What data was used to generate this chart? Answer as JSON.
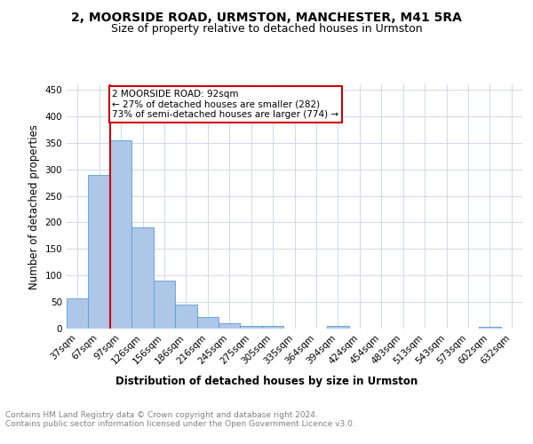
{
  "title1": "2, MOORSIDE ROAD, URMSTON, MANCHESTER, M41 5RA",
  "title2": "Size of property relative to detached houses in Urmston",
  "xlabel": "Distribution of detached houses by size in Urmston",
  "ylabel": "Number of detached properties",
  "footer": "Contains HM Land Registry data © Crown copyright and database right 2024.\nContains public sector information licensed under the Open Government Licence v3.0.",
  "categories": [
    "37sqm",
    "67sqm",
    "97sqm",
    "126sqm",
    "156sqm",
    "186sqm",
    "216sqm",
    "245sqm",
    "275sqm",
    "305sqm",
    "335sqm",
    "364sqm",
    "394sqm",
    "424sqm",
    "454sqm",
    "483sqm",
    "513sqm",
    "543sqm",
    "573sqm",
    "602sqm",
    "632sqm"
  ],
  "values": [
    57,
    290,
    354,
    191,
    90,
    46,
    22,
    10,
    5,
    5,
    0,
    0,
    5,
    0,
    0,
    0,
    0,
    0,
    0,
    3,
    0
  ],
  "bar_color": "#aec6e8",
  "bar_edge_color": "#5a9fd4",
  "annotation_line1": "2 MOORSIDE ROAD: 92sqm",
  "annotation_line2": "← 27% of detached houses are smaller (282)",
  "annotation_line3": "73% of semi-detached houses are larger (774) →",
  "annotation_box_color": "#cc0000",
  "ylim": [
    0,
    460
  ],
  "yticks": [
    0,
    50,
    100,
    150,
    200,
    250,
    300,
    350,
    400,
    450
  ],
  "grid_color": "#d0d8e8",
  "title1_fontsize": 10,
  "title2_fontsize": 9,
  "xlabel_fontsize": 8.5,
  "ylabel_fontsize": 8.5,
  "tick_fontsize": 7.5,
  "footer_fontsize": 6.5,
  "annotation_fontsize": 7.5
}
